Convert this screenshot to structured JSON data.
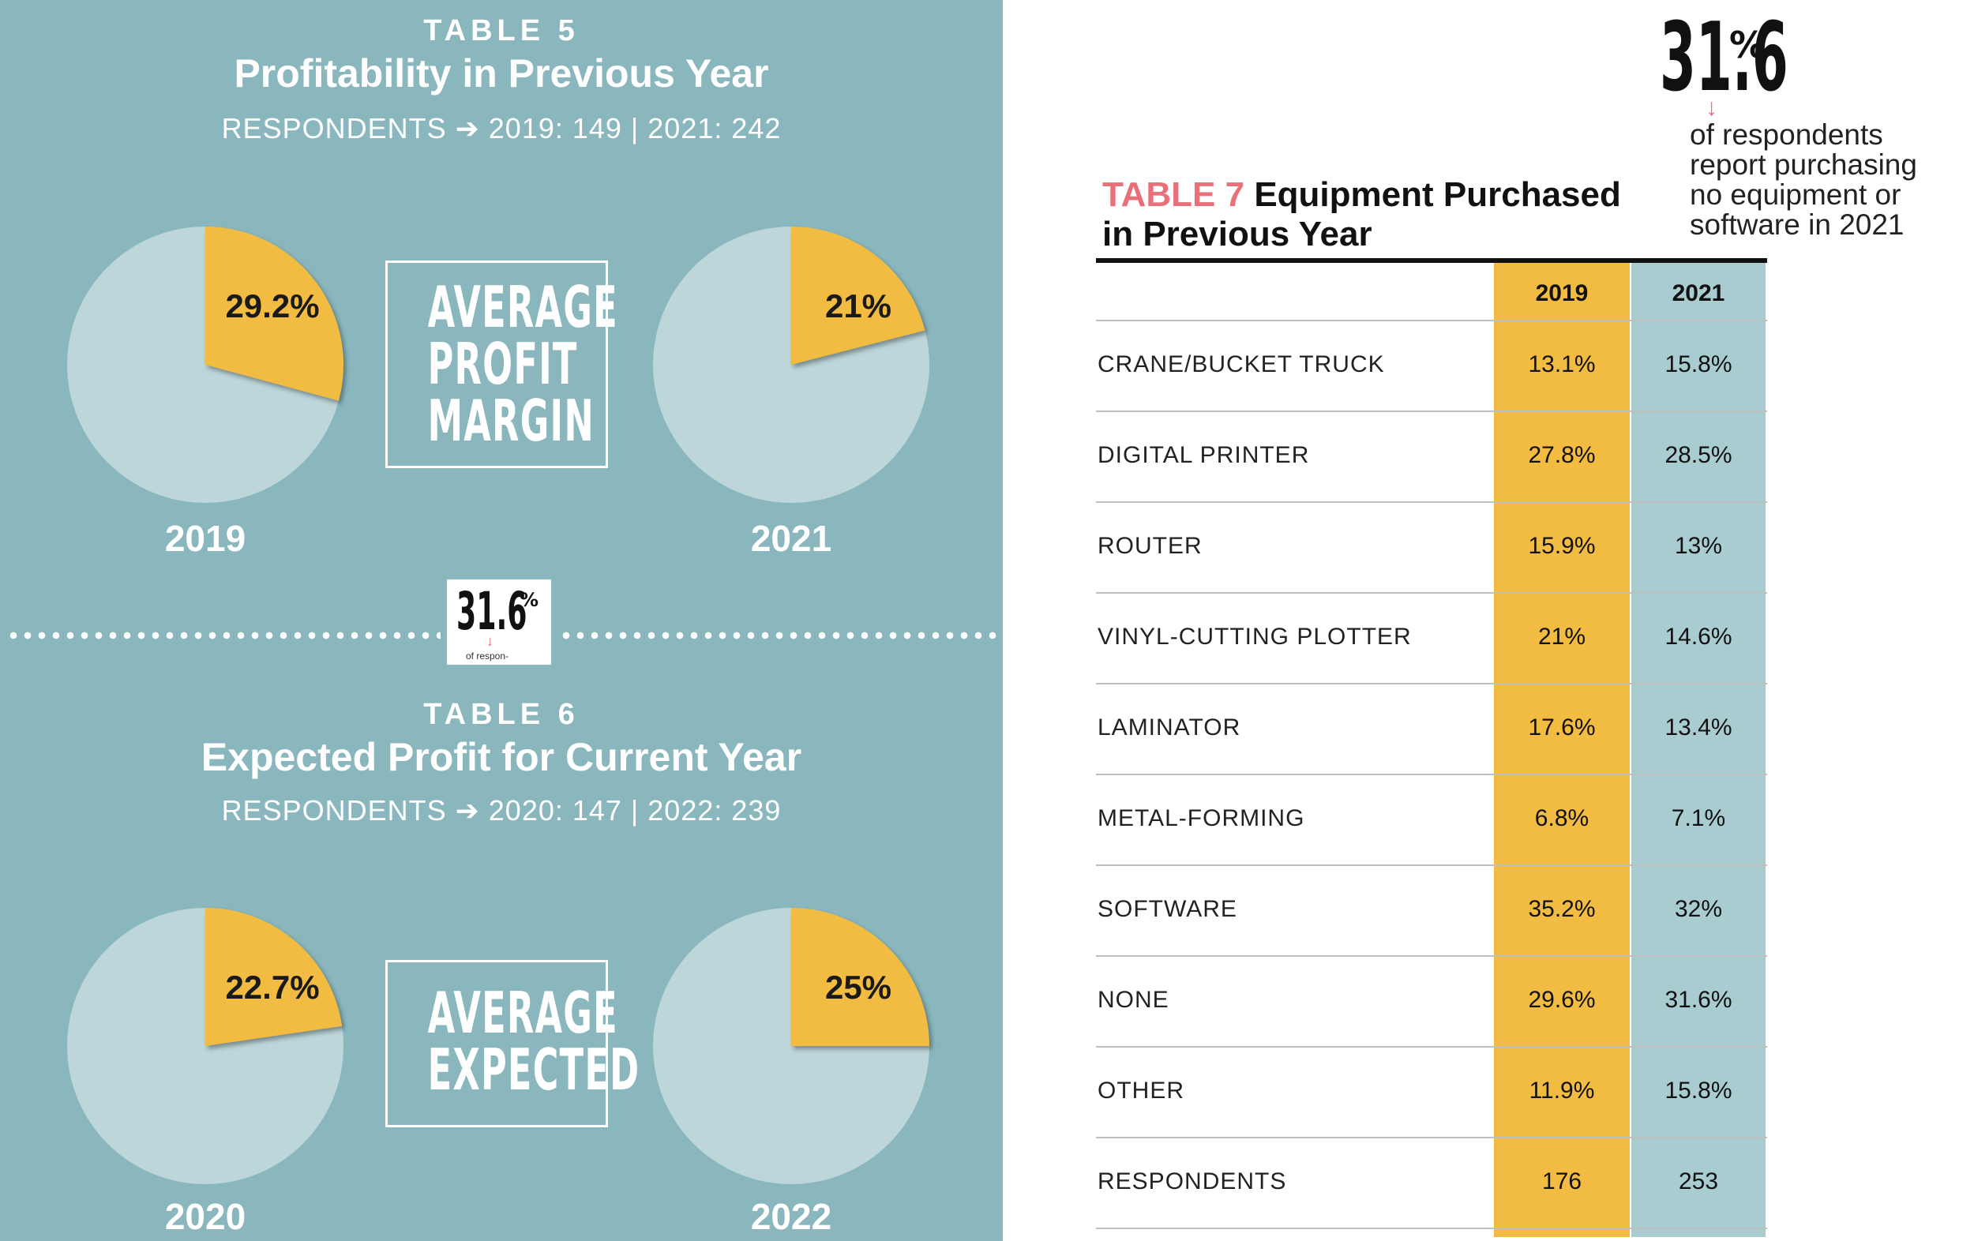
{
  "table5": {
    "label": "TABLE 5",
    "title": "Profitability in Previous Year",
    "respondents": "RESPONDENTS ➔ 2019: 149  |  2021: 242",
    "center_text": [
      "AVERAGE",
      "PROFIT",
      "MARGIN"
    ]
  },
  "table6": {
    "label": "TABLE 6",
    "title": "Expected Profit for Current Year",
    "respondents": "RESPONDENTS ➔ 2020: 147  |  2022: 239",
    "center_text": [
      "AVERAGE",
      "EXPECTED"
    ]
  },
  "badge": {
    "value": "31.6",
    "pct": "%",
    "caption": "of respon-"
  },
  "table7": {
    "tag": "TABLE 7",
    "title_line1": "Equipment Purchased",
    "title_line2": "in Previous Year",
    "headers": [
      "2019",
      "2021"
    ]
  },
  "stat": {
    "value": "31.6",
    "pct": "%",
    "arrow": "↓",
    "desc_lines": [
      "of respondents",
      "report purchasing",
      "no equipment or",
      "software in 2021"
    ]
  },
  "colors": {
    "teal": "#89b7bd",
    "pie_light": "#bcd6d9",
    "pie_accent": "#f2bb41",
    "col2021": "#a8ccd0",
    "tag": "#e8707a"
  },
  "chart_data": [
    {
      "type": "pie",
      "title": "Profitability in Previous Year",
      "charts": [
        {
          "label": "2019",
          "value": 29.2,
          "display": "29.2%"
        },
        {
          "label": "2021",
          "value": 21,
          "display": "21%"
        }
      ]
    },
    {
      "type": "pie",
      "title": "Expected Profit for Current Year",
      "charts": [
        {
          "label": "2020",
          "value": 22.7,
          "display": "22.7%"
        },
        {
          "label": "2022",
          "value": 25,
          "display": "25%"
        }
      ]
    },
    {
      "type": "table",
      "title": "Equipment Purchased in Previous Year",
      "columns": [
        "2019",
        "2021"
      ],
      "rows": [
        {
          "label": "CRANE/BUCKET TRUCK",
          "values": [
            "13.1%",
            "15.8%"
          ]
        },
        {
          "label": "DIGITAL PRINTER",
          "values": [
            "27.8%",
            "28.5%"
          ]
        },
        {
          "label": "ROUTER",
          "values": [
            "15.9%",
            "13%"
          ]
        },
        {
          "label": "VINYL-CUTTING PLOTTER",
          "values": [
            "21%",
            "14.6%"
          ]
        },
        {
          "label": "LAMINATOR",
          "values": [
            "17.6%",
            "13.4%"
          ]
        },
        {
          "label": "METAL-FORMING",
          "values": [
            "6.8%",
            "7.1%"
          ]
        },
        {
          "label": "SOFTWARE",
          "values": [
            "35.2%",
            "32%"
          ]
        },
        {
          "label": "NONE",
          "values": [
            "29.6%",
            "31.6%"
          ]
        },
        {
          "label": "OTHER",
          "values": [
            "11.9%",
            "15.8%"
          ]
        },
        {
          "label": "RESPONDENTS",
          "values": [
            "176",
            "253"
          ]
        }
      ]
    }
  ]
}
